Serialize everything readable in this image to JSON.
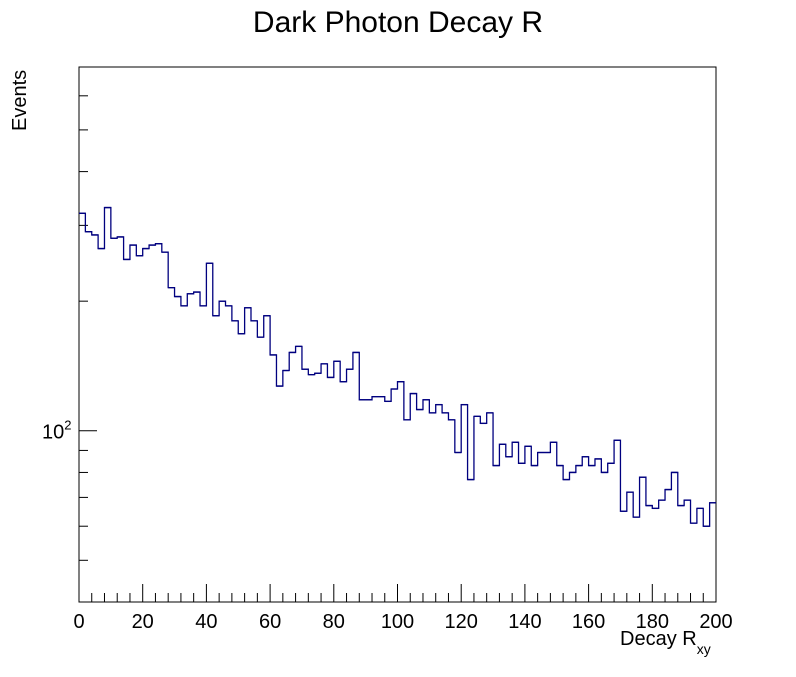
{
  "chart_data": {
    "type": "histogram",
    "title": "Dark Photon Decay R",
    "xlabel": "Decay R",
    "xlabel_subscript": "xy",
    "ylabel": "Events",
    "xlim": [
      0,
      200
    ],
    "ylim": [
      40,
      700
    ],
    "y_scale": "log",
    "grid": false,
    "line_color": "#00007f",
    "x_ticks": [
      0,
      20,
      40,
      60,
      80,
      100,
      120,
      140,
      160,
      180,
      200
    ],
    "y_tick_labels": [
      {
        "base": "10",
        "exp": "2",
        "value": 100
      }
    ],
    "bin_width": 2,
    "values": [
      320,
      290,
      285,
      265,
      330,
      280,
      282,
      250,
      270,
      255,
      265,
      270,
      272,
      260,
      215,
      205,
      195,
      208,
      210,
      195,
      245,
      185,
      200,
      195,
      180,
      168,
      193,
      180,
      165,
      185,
      150,
      127,
      138,
      152,
      157,
      139,
      135,
      136,
      143,
      133,
      145,
      130,
      139,
      152,
      118,
      118,
      120,
      120,
      117,
      125,
      130,
      106,
      122,
      112,
      118,
      110,
      115,
      110,
      106,
      89,
      115,
      77,
      108,
      104,
      110,
      83,
      93,
      87,
      94,
      84,
      92,
      83,
      89,
      89,
      94,
      83,
      77,
      80,
      83,
      87,
      83,
      86,
      80,
      84,
      95,
      65,
      72,
      63,
      78,
      67,
      66,
      69,
      73,
      80,
      67,
      69,
      61,
      66,
      60,
      68
    ]
  }
}
